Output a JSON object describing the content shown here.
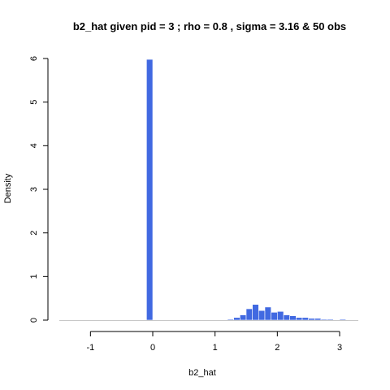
{
  "chart_data": {
    "type": "bar",
    "title": "b2_hat given pid =  3 ; rho = 0.8 , sigma = 3.16 & 50 obs",
    "xlabel": "b2_hat",
    "ylabel": "Density",
    "xlim": [
      -1.5,
      3.3
    ],
    "ylim": [
      0,
      6
    ],
    "xticks": [
      -1,
      0,
      1,
      2,
      3
    ],
    "yticks": [
      0,
      1,
      2,
      3,
      4,
      5,
      6
    ],
    "bar_color": "#4169e1",
    "bin_width": 0.1,
    "bins": [
      {
        "x0": -0.1,
        "x1": 0.0,
        "density": 5.98
      },
      {
        "x0": 1.2,
        "x1": 1.3,
        "density": 0.02
      },
      {
        "x0": 1.3,
        "x1": 1.4,
        "density": 0.06
      },
      {
        "x0": 1.4,
        "x1": 1.5,
        "density": 0.12
      },
      {
        "x0": 1.5,
        "x1": 1.6,
        "density": 0.26
      },
      {
        "x0": 1.6,
        "x1": 1.7,
        "density": 0.36
      },
      {
        "x0": 1.7,
        "x1": 1.8,
        "density": 0.22
      },
      {
        "x0": 1.8,
        "x1": 1.9,
        "density": 0.3
      },
      {
        "x0": 1.9,
        "x1": 2.0,
        "density": 0.18
      },
      {
        "x0": 2.0,
        "x1": 2.1,
        "density": 0.2
      },
      {
        "x0": 2.1,
        "x1": 2.2,
        "density": 0.12
      },
      {
        "x0": 2.2,
        "x1": 2.3,
        "density": 0.1
      },
      {
        "x0": 2.3,
        "x1": 2.4,
        "density": 0.06
      },
      {
        "x0": 2.4,
        "x1": 2.5,
        "density": 0.06
      },
      {
        "x0": 2.5,
        "x1": 2.6,
        "density": 0.04
      },
      {
        "x0": 2.6,
        "x1": 2.7,
        "density": 0.04
      },
      {
        "x0": 2.7,
        "x1": 2.8,
        "density": 0.02
      },
      {
        "x0": 2.8,
        "x1": 2.9,
        "density": 0.02
      },
      {
        "x0": 3.0,
        "x1": 3.1,
        "density": 0.02
      }
    ]
  }
}
